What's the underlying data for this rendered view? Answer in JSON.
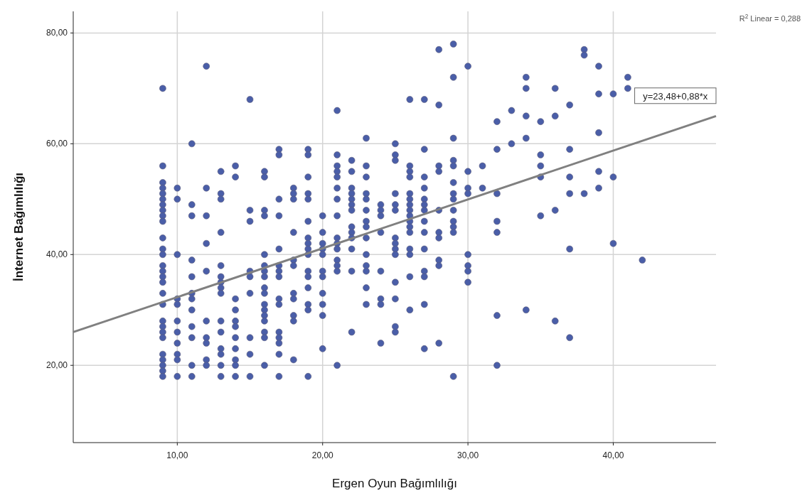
{
  "chart_data": {
    "type": "scatter",
    "xlabel": "Ergen Oyun Bağımlılığı",
    "ylabel": "İnternet Bağımlılığı",
    "xlim": [
      2.84,
      47.07
    ],
    "ylim": [
      6.05,
      83.9
    ],
    "xticks": [
      {
        "value": 10,
        "label": "10,00"
      },
      {
        "value": 20,
        "label": "20,00"
      },
      {
        "value": 30,
        "label": "30,00"
      },
      {
        "value": 40,
        "label": "40,00"
      }
    ],
    "yticks": [
      {
        "value": 20,
        "label": "20,00"
      },
      {
        "value": 40,
        "label": "40,00"
      },
      {
        "value": 60,
        "label": "60,00"
      },
      {
        "value": 80,
        "label": "80,00"
      }
    ],
    "grid": true,
    "annotations": [
      "y=23,48+0,88*x",
      "R$^{2}$ Linear = 0,288"
    ],
    "series": [
      {
        "marker": "circle",
        "color": "#4a5ea8",
        "x": [
          9,
          9,
          9,
          9,
          9,
          9,
          9,
          9,
          9,
          9,
          9,
          9,
          9,
          9,
          9,
          9,
          9,
          9,
          9,
          9,
          9,
          9,
          9,
          9,
          9,
          9,
          9,
          9,
          10,
          10,
          10,
          10,
          10,
          10,
          10,
          10,
          10,
          10,
          10,
          11,
          11,
          11,
          11,
          11,
          11,
          11,
          11,
          11,
          11,
          11,
          11,
          12,
          12,
          12,
          12,
          12,
          12,
          12,
          12,
          12,
          12,
          13,
          13,
          13,
          13,
          13,
          13,
          13,
          13,
          13,
          13,
          13,
          13,
          13,
          13,
          13,
          14,
          14,
          14,
          14,
          14,
          14,
          14,
          14,
          14,
          14,
          14,
          15,
          15,
          15,
          15,
          15,
          15,
          15,
          15,
          15,
          16,
          16,
          16,
          16,
          16,
          16,
          16,
          16,
          16,
          16,
          16,
          16,
          16,
          16,
          16,
          16,
          16,
          17,
          17,
          17,
          17,
          17,
          17,
          17,
          17,
          17,
          17,
          17,
          17,
          17,
          17,
          17,
          18,
          18,
          18,
          18,
          18,
          18,
          18,
          18,
          18,
          18,
          18,
          19,
          19,
          19,
          19,
          19,
          19,
          19,
          19,
          19,
          19,
          19,
          19,
          19,
          19,
          19,
          19,
          20,
          20,
          20,
          20,
          20,
          20,
          20,
          20,
          20,
          20,
          20,
          21,
          21,
          21,
          21,
          21,
          21,
          21,
          21,
          21,
          21,
          21,
          21,
          21,
          21,
          21,
          22,
          22,
          22,
          22,
          22,
          22,
          22,
          22,
          22,
          22,
          22,
          22,
          22,
          23,
          23,
          23,
          23,
          23,
          23,
          23,
          23,
          23,
          23,
          23,
          23,
          23,
          23,
          24,
          24,
          24,
          24,
          24,
          24,
          24,
          24,
          25,
          25,
          25,
          25,
          25,
          25,
          25,
          25,
          25,
          25,
          25,
          25,
          25,
          25,
          26,
          26,
          26,
          26,
          26,
          26,
          26,
          26,
          26,
          26,
          26,
          26,
          26,
          26,
          26,
          26,
          27,
          27,
          27,
          27,
          27,
          27,
          27,
          27,
          27,
          27,
          27,
          27,
          27,
          27,
          28,
          28,
          28,
          28,
          28,
          28,
          28,
          28,
          28,
          28,
          29,
          29,
          29,
          29,
          29,
          29,
          29,
          29,
          29,
          29,
          29,
          29,
          29,
          30,
          30,
          30,
          30,
          30,
          30,
          30,
          30,
          31,
          31,
          32,
          32,
          32,
          32,
          32,
          32,
          32,
          33,
          33,
          34,
          34,
          34,
          34,
          34,
          35,
          35,
          35,
          35,
          35,
          36,
          36,
          36,
          36,
          37,
          37,
          37,
          37,
          37,
          37,
          38,
          38,
          38,
          39,
          39,
          39,
          39,
          39,
          40,
          40,
          40,
          41,
          41,
          42
        ],
        "values": [
          70,
          56,
          53,
          52,
          51,
          50,
          49,
          48,
          47,
          46,
          43,
          41,
          40,
          38,
          37,
          36,
          35,
          33,
          31,
          28,
          27,
          26,
          25,
          22,
          21,
          20,
          19,
          18,
          52,
          50,
          40,
          32,
          31,
          28,
          26,
          24,
          22,
          21,
          18,
          60,
          49,
          47,
          39,
          36,
          33,
          32,
          30,
          27,
          25,
          20,
          18,
          74,
          52,
          47,
          42,
          37,
          28,
          25,
          24,
          21,
          20,
          55,
          51,
          50,
          44,
          38,
          36,
          35,
          34,
          33,
          28,
          26,
          23,
          22,
          20,
          18,
          56,
          54,
          32,
          30,
          28,
          27,
          25,
          23,
          21,
          20,
          18,
          68,
          48,
          46,
          37,
          36,
          33,
          25,
          22,
          18,
          55,
          54,
          48,
          47,
          40,
          38,
          37,
          36,
          34,
          33,
          31,
          30,
          29,
          28,
          26,
          25,
          20,
          59,
          58,
          50,
          47,
          41,
          38,
          37,
          36,
          32,
          31,
          26,
          25,
          24,
          22,
          18,
          52,
          51,
          50,
          44,
          39,
          38,
          33,
          32,
          29,
          28,
          21,
          59,
          58,
          54,
          51,
          50,
          46,
          43,
          42,
          41,
          40,
          37,
          36,
          34,
          31,
          30,
          18,
          47,
          44,
          42,
          41,
          40,
          37,
          36,
          33,
          31,
          29,
          23,
          66,
          58,
          56,
          55,
          54,
          52,
          50,
          47,
          43,
          42,
          41,
          39,
          38,
          37,
          20,
          57,
          55,
          52,
          51,
          50,
          49,
          48,
          45,
          44,
          43,
          41,
          37,
          26,
          61,
          56,
          54,
          51,
          50,
          48,
          46,
          45,
          43,
          40,
          38,
          37,
          34,
          31,
          49,
          48,
          47,
          44,
          37,
          32,
          31,
          24,
          60,
          58,
          57,
          51,
          49,
          48,
          43,
          42,
          41,
          40,
          35,
          32,
          27,
          26,
          68,
          56,
          55,
          54,
          51,
          50,
          49,
          48,
          47,
          46,
          45,
          44,
          41,
          40,
          36,
          30,
          68,
          59,
          54,
          52,
          50,
          49,
          48,
          46,
          44,
          41,
          37,
          36,
          31,
          23,
          77,
          67,
          56,
          55,
          48,
          44,
          43,
          39,
          38,
          24,
          78,
          72,
          61,
          57,
          56,
          53,
          51,
          50,
          48,
          46,
          45,
          44,
          18,
          74,
          55,
          52,
          51,
          40,
          38,
          37,
          35,
          56,
          52,
          64,
          59,
          51,
          46,
          44,
          29,
          20,
          66,
          60,
          72,
          70,
          65,
          61,
          30,
          64,
          58,
          56,
          54,
          47,
          70,
          65,
          48,
          28,
          67,
          59,
          54,
          51,
          41,
          25,
          77,
          76,
          51,
          74,
          69,
          62,
          55,
          52,
          69,
          54,
          42,
          72,
          70,
          39
        ]
      },
      {
        "type": "line",
        "color": "#808080",
        "x": [
          2.84,
          47.07
        ],
        "values": [
          26,
          65
        ]
      }
    ]
  }
}
